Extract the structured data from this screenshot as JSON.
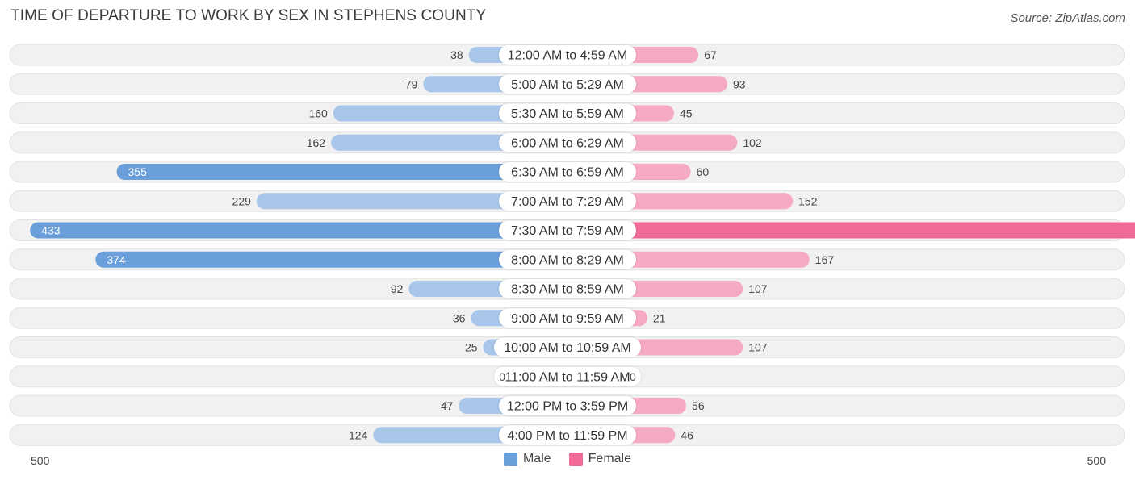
{
  "header": {
    "title": "TIME OF DEPARTURE TO WORK BY SEX IN STEPHENS COUNTY",
    "source": "Source: ZipAtlas.com"
  },
  "colors": {
    "male_light": "#a7c6ea",
    "male_strong": "#6a9fdc",
    "female_light": "#f6a9c3",
    "female_strong": "#f06a96",
    "track": "#f1f1f1"
  },
  "chart_data": {
    "type": "bar",
    "orientation": "horizontal-diverging",
    "title": "TIME OF DEPARTURE TO WORK BY SEX IN STEPHENS COUNTY",
    "categories": [
      "12:00 AM to 4:59 AM",
      "5:00 AM to 5:29 AM",
      "5:30 AM to 5:59 AM",
      "6:00 AM to 6:29 AM",
      "6:30 AM to 6:59 AM",
      "7:00 AM to 7:29 AM",
      "7:30 AM to 7:59 AM",
      "8:00 AM to 8:29 AM",
      "8:30 AM to 8:59 AM",
      "9:00 AM to 9:59 AM",
      "10:00 AM to 10:59 AM",
      "11:00 AM to 11:59 AM",
      "12:00 PM to 3:59 PM",
      "4:00 PM to 11:59 PM"
    ],
    "series": [
      {
        "name": "Male",
        "values": [
          38,
          79,
          160,
          162,
          355,
          229,
          433,
          374,
          92,
          36,
          25,
          0,
          47,
          124
        ]
      },
      {
        "name": "Female",
        "values": [
          67,
          93,
          45,
          102,
          60,
          152,
          496,
          167,
          107,
          21,
          107,
          0,
          56,
          46
        ]
      }
    ],
    "axis": {
      "min_label": "500",
      "max_label": "500",
      "range": [
        0,
        500
      ]
    },
    "legend": {
      "position": "bottom-center",
      "labels": [
        "Male",
        "Female"
      ]
    }
  }
}
